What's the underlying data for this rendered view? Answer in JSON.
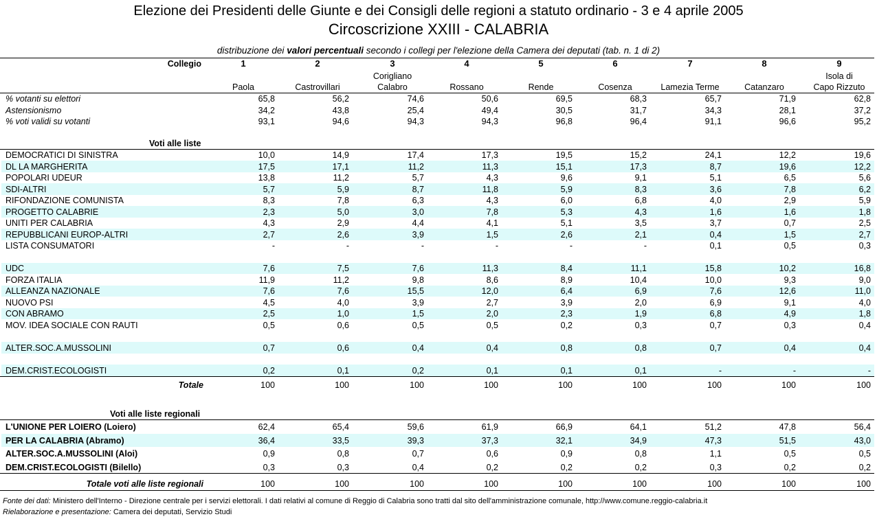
{
  "header": {
    "title": "Elezione dei Presidenti delle Giunte e dei Consigli delle regioni a statuto ordinario - 3 e 4 aprile 2005",
    "subtitle": "Circoscrizione XXIII - CALABRIA",
    "description": [
      "distribuzione dei",
      "valori percentuali",
      "secondo i collegi per l'elezione della Camera dei deputati (tab. n. 1 di 2)"
    ]
  },
  "table": {
    "collegio_label": "Collegio",
    "columns": [
      {
        "number": 1,
        "name": [
          "Paola"
        ]
      },
      {
        "number": 2,
        "name": [
          "Castrovillari"
        ]
      },
      {
        "number": 3,
        "name": [
          "Corigliano",
          "Calabro"
        ]
      },
      {
        "number": 4,
        "name": [
          "Rossano"
        ]
      },
      {
        "number": 5,
        "name": [
          "Rende"
        ]
      },
      {
        "number": 6,
        "name": [
          "Cosenza"
        ]
      },
      {
        "number": 7,
        "name": [
          "Lamezia Terme"
        ]
      },
      {
        "number": 8,
        "name": [
          "Catanzaro"
        ]
      },
      {
        "number": 9,
        "name": [
          "Isola di",
          "Capo Rizzuto"
        ]
      }
    ],
    "turnout_rows": [
      {
        "label": "% votanti su elettori",
        "values": [
          "65,8",
          "56,2",
          "74,6",
          "50,6",
          "69,5",
          "68,3",
          "65,7",
          "71,9",
          "62,8"
        ]
      },
      {
        "label": "Astensionismo",
        "values": [
          "34,2",
          "43,8",
          "25,4",
          "49,4",
          "30,5",
          "31,7",
          "34,3",
          "28,1",
          "37,2"
        ]
      },
      {
        "label": "% voti validi su votanti",
        "values": [
          "93,1",
          "94,6",
          "94,3",
          "94,3",
          "96,8",
          "96,4",
          "91,1",
          "96,6",
          "95,2"
        ]
      }
    ],
    "lists_heading": "Voti alle liste",
    "list_groups": [
      [
        {
          "label": "DEMOCRATICI DI SINISTRA",
          "values": [
            "10,0",
            "14,9",
            "17,4",
            "17,3",
            "19,5",
            "15,2",
            "24,1",
            "12,2",
            "19,6"
          ]
        },
        {
          "label": "DL LA MARGHERITA",
          "values": [
            "17,5",
            "17,1",
            "11,2",
            "11,3",
            "15,1",
            "17,3",
            "8,7",
            "19,6",
            "12,2"
          ]
        },
        {
          "label": "POPOLARI UDEUR",
          "values": [
            "13,8",
            "11,2",
            "5,7",
            "4,3",
            "9,6",
            "9,1",
            "5,1",
            "6,5",
            "5,6"
          ]
        },
        {
          "label": "SDI-ALTRI",
          "values": [
            "5,7",
            "5,9",
            "8,7",
            "11,8",
            "5,9",
            "8,3",
            "3,6",
            "7,8",
            "6,2"
          ]
        },
        {
          "label": "RIFONDAZIONE COMUNISTA",
          "values": [
            "8,3",
            "7,8",
            "6,3",
            "4,3",
            "6,0",
            "6,8",
            "4,0",
            "2,9",
            "5,9"
          ]
        },
        {
          "label": "PROGETTO CALABRIE",
          "values": [
            "2,3",
            "5,0",
            "3,0",
            "7,8",
            "5,3",
            "4,3",
            "1,6",
            "1,6",
            "1,8"
          ]
        },
        {
          "label": "UNITI PER CALABRIA",
          "values": [
            "4,3",
            "2,9",
            "4,4",
            "4,1",
            "5,1",
            "3,5",
            "3,7",
            "0,7",
            "2,5"
          ]
        },
        {
          "label": "REPUBBLICANI EUROP-ALTRI",
          "values": [
            "2,7",
            "2,6",
            "3,9",
            "1,5",
            "2,6",
            "2,1",
            "0,4",
            "1,5",
            "2,7"
          ]
        },
        {
          "label": "LISTA CONSUMATORI",
          "values": [
            "-",
            "-",
            "-",
            "-",
            "-",
            "-",
            "0,1",
            "0,5",
            "0,3"
          ]
        }
      ],
      [
        {
          "label": "UDC",
          "values": [
            "7,6",
            "7,5",
            "7,6",
            "11,3",
            "8,4",
            "11,1",
            "15,8",
            "10,2",
            "16,8"
          ]
        },
        {
          "label": "FORZA ITALIA",
          "values": [
            "11,9",
            "11,2",
            "9,8",
            "8,6",
            "8,9",
            "10,4",
            "10,0",
            "9,3",
            "9,0"
          ]
        },
        {
          "label": "ALLEANZA NAZIONALE",
          "values": [
            "7,6",
            "7,6",
            "15,5",
            "12,0",
            "6,4",
            "6,9",
            "7,6",
            "12,6",
            "11,0"
          ]
        },
        {
          "label": "NUOVO PSI",
          "values": [
            "4,5",
            "4,0",
            "3,9",
            "2,7",
            "3,9",
            "2,0",
            "6,9",
            "9,1",
            "4,0"
          ]
        },
        {
          "label": "CON ABRAMO",
          "values": [
            "2,5",
            "1,0",
            "1,5",
            "2,0",
            "2,3",
            "1,9",
            "6,8",
            "4,9",
            "1,8"
          ]
        },
        {
          "label": "MOV. IDEA SOCIALE CON RAUTI",
          "values": [
            "0,5",
            "0,6",
            "0,5",
            "0,5",
            "0,2",
            "0,3",
            "0,7",
            "0,3",
            "0,4"
          ]
        }
      ],
      [
        {
          "label": "ALTER.SOC.A.MUSSOLINI",
          "values": [
            "0,7",
            "0,6",
            "0,4",
            "0,4",
            "0,8",
            "0,8",
            "0,7",
            "0,4",
            "0,4"
          ]
        }
      ],
      [
        {
          "label": "DEM.CRIST.ECOLOGISTI",
          "values": [
            "0,2",
            "0,1",
            "0,2",
            "0,1",
            "0,1",
            "0,1",
            "-",
            "-",
            "-"
          ]
        }
      ]
    ],
    "total": {
      "label": "Totale",
      "values": [
        100,
        100,
        100,
        100,
        100,
        100,
        100,
        100,
        100
      ]
    },
    "regional_heading": "Voti alle liste regionali",
    "regional_rows": [
      {
        "label": "L'UNIONE PER LOIERO (Loiero)",
        "values": [
          "62,4",
          "65,4",
          "59,6",
          "61,9",
          "66,9",
          "64,1",
          "51,2",
          "47,8",
          "56,4"
        ]
      },
      {
        "label": "PER LA CALABRIA (Abramo)",
        "values": [
          "36,4",
          "33,5",
          "39,3",
          "37,3",
          "32,1",
          "34,9",
          "47,3",
          "51,5",
          "43,0"
        ]
      },
      {
        "label": "ALTER.SOC.A.MUSSOLINI (Aloi)",
        "values": [
          "0,9",
          "0,8",
          "0,7",
          "0,6",
          "0,9",
          "0,8",
          "1,1",
          "0,5",
          "0,5"
        ]
      },
      {
        "label": "DEM.CRIST.ECOLOGISTI (Bilello)",
        "values": [
          "0,3",
          "0,3",
          "0,4",
          "0,2",
          "0,2",
          "0,2",
          "0,3",
          "0,2",
          "0,2"
        ]
      }
    ],
    "regional_total": {
      "label": "Totale voti alle liste regionali",
      "values": [
        100,
        100,
        100,
        100,
        100,
        100,
        100,
        100,
        100
      ]
    }
  },
  "footer": [
    {
      "label": "Fonte dei dati:",
      "text": "Ministero dell'Interno - Direzione centrale per i servizi elettorali. I dati relativi al comune di Reggio di Calabria sono tratti dal sito dell'amministrazione comunale, http://www.comune.reggio-calabria.it"
    },
    {
      "label": "Rielaborazione e presentazione:",
      "text": "Camera dei deputati, Servizio Studi"
    }
  ]
}
